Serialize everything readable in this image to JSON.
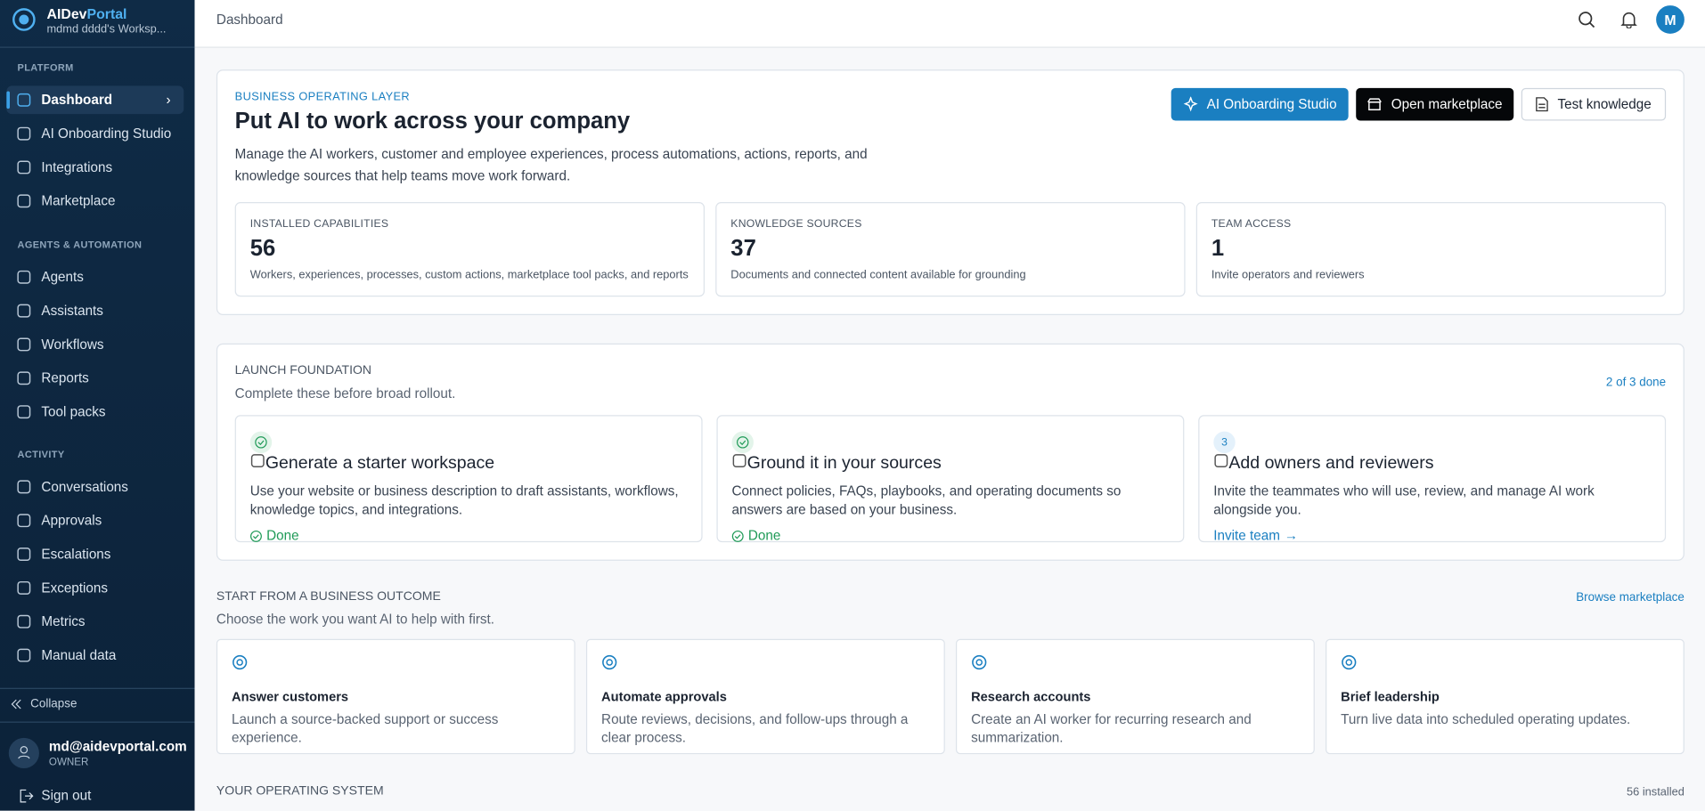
{
  "brand": {
    "name_a": "AIDev",
    "name_b": "Portal",
    "workspace": "mdmd dddd's Worksp..."
  },
  "sidebar": {
    "sections": [
      {
        "title": "PLATFORM",
        "items": [
          "Dashboard",
          "AI Onboarding Studio",
          "Integrations",
          "Marketplace"
        ]
      },
      {
        "title": "AGENTS & AUTOMATION",
        "items": [
          "Agents",
          "Assistants",
          "Workflows",
          "Reports",
          "Tool packs"
        ]
      },
      {
        "title": "ACTIVITY",
        "items": [
          "Conversations",
          "Approvals",
          "Escalations",
          "Exceptions",
          "Metrics",
          "Manual data"
        ]
      }
    ],
    "collapse": "Collapse",
    "user": {
      "email": "md@aidevportal.com",
      "role": "OWNER"
    },
    "sign_out": "Sign out"
  },
  "header": {
    "breadcrumb": "Dashboard",
    "avatar": "M"
  },
  "hero": {
    "eyebrow": "BUSINESS OPERATING LAYER",
    "title": "Put AI to work across your company",
    "description": "Manage the AI workers, customer and employee experiences, process automations, actions, reports, and knowledge sources that help teams move work forward.",
    "buttons": [
      "AI Onboarding Studio",
      "Open marketplace",
      "Test knowledge"
    ],
    "stats": [
      {
        "label": "INSTALLED CAPABILITIES",
        "value": 56,
        "note": "Workers, experiences, processes, custom actions, marketplace tool packs, and reports"
      },
      {
        "label": "KNOWLEDGE SOURCES",
        "value": 37,
        "note": "Documents and connected content available for grounding"
      },
      {
        "label": "TEAM ACCESS",
        "value": 1,
        "note": "Invite operators and reviewers"
      }
    ]
  },
  "launch": {
    "title": "LAUNCH FOUNDATION",
    "subtitle": "Complete these before broad rollout.",
    "progress": "2 of 3 done",
    "steps": [
      {
        "title": "Generate a starter workspace",
        "description": "Use your website or business description to draft assistants, workflows, knowledge topics, and integrations.",
        "status": "Done"
      },
      {
        "title": "Ground it in your sources",
        "description": "Connect policies, FAQs, playbooks, and operating documents so answers are based on your business.",
        "status": "Done"
      },
      {
        "badge": "3",
        "title": "Add owners and reviewers",
        "description": "Invite the teammates who will use, review, and manage AI work alongside you.",
        "status": "Invite team"
      }
    ]
  },
  "outcomes": {
    "title": "START FROM A BUSINESS OUTCOME",
    "subtitle": "Choose the work you want AI to help with first.",
    "link": "Browse marketplace",
    "cards": [
      {
        "title": "Answer customers",
        "description": "Launch a source-backed support or success experience."
      },
      {
        "title": "Automate approvals",
        "description": "Route reviews, decisions, and follow-ups through a clear process."
      },
      {
        "title": "Research accounts",
        "description": "Create an AI worker for recurring research and summarization."
      },
      {
        "title": "Brief leadership",
        "description": "Turn live data into scheduled operating updates."
      }
    ]
  },
  "operating": {
    "title": "YOUR OPERATING SYSTEM",
    "count": "56 installed"
  }
}
